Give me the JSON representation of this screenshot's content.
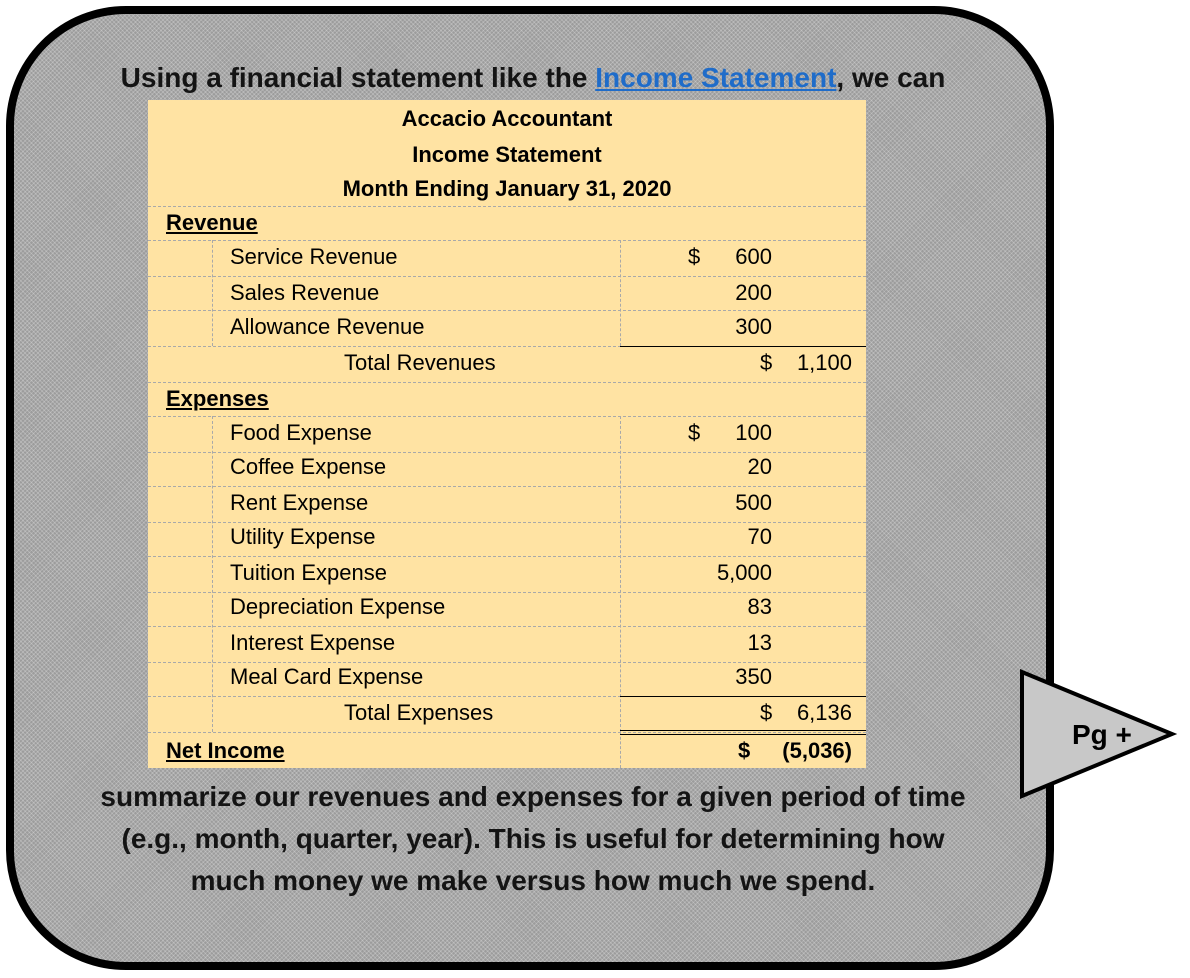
{
  "intro": {
    "before": "Using a financial statement like the ",
    "link": "Income Statement",
    "after": ", we can"
  },
  "statement": {
    "company": "Accacio Accountant",
    "title": "Income Statement",
    "period": "Month Ending January 31, 2020",
    "revenue": {
      "heading": "Revenue",
      "items": [
        {
          "label": "Service Revenue",
          "currency": "$",
          "amount": "600"
        },
        {
          "label": "Sales Revenue",
          "currency": "",
          "amount": "200"
        },
        {
          "label": "Allowance Revenue",
          "currency": "",
          "amount": "300"
        }
      ],
      "total_label": "Total Revenues",
      "total_currency": "$",
      "total_amount": "1,100"
    },
    "expenses": {
      "heading": "Expenses",
      "items": [
        {
          "label": "Food Expense",
          "currency": "$",
          "amount": "100"
        },
        {
          "label": "Coffee Expense",
          "currency": "",
          "amount": "20"
        },
        {
          "label": "Rent Expense",
          "currency": "",
          "amount": "500"
        },
        {
          "label": "Utility Expense",
          "currency": "",
          "amount": "70"
        },
        {
          "label": "Tuition Expense",
          "currency": "",
          "amount": "5,000"
        },
        {
          "label": "Depreciation Expense",
          "currency": "",
          "amount": "83"
        },
        {
          "label": "Interest Expense",
          "currency": "",
          "amount": "13"
        },
        {
          "label": "Meal Card Expense",
          "currency": "",
          "amount": "350"
        }
      ],
      "total_label": "Total Expenses",
      "total_currency": "$",
      "total_amount": "6,136"
    },
    "net_income": {
      "label": "Net Income",
      "currency": "$",
      "amount": "(5,036)"
    }
  },
  "summary": [
    "summarize our revenues and expenses for a given period of time",
    "(e.g., month, quarter, year). This is useful for determining how",
    "much money we make versus how much we spend."
  ],
  "nav": {
    "next_label": "Pg +"
  },
  "colors": {
    "statement_background": "#ffe3a3",
    "bubble_background": "#9c9c9c",
    "link": "#1f6cc9",
    "arrow_fill": "#c8c8c8"
  }
}
